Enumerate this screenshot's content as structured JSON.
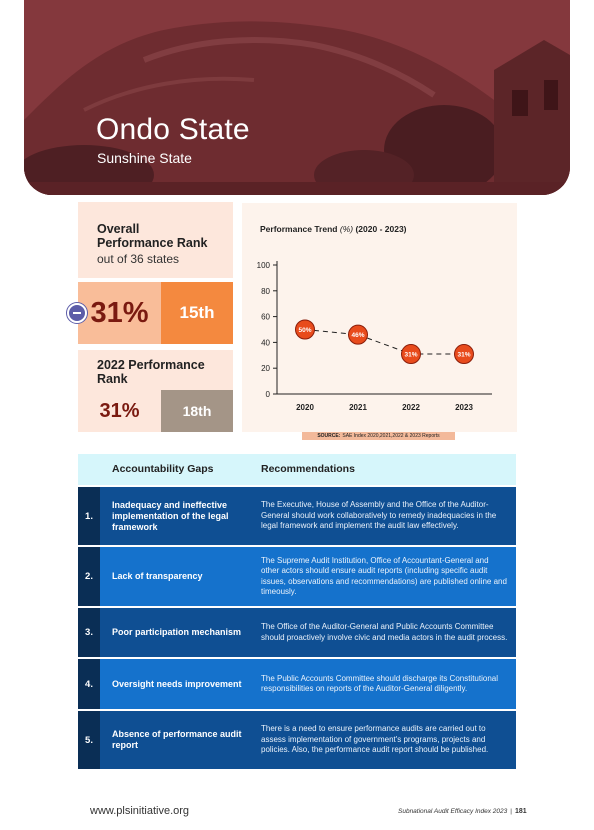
{
  "hero": {
    "title": "Ondo State",
    "subtitle": "Sunshine State"
  },
  "overall_rank": {
    "heading": "Overall Performance Rank",
    "subheading": "out of 36 states",
    "score": "31%",
    "rank": "15th",
    "change_icon": "minus-icon"
  },
  "rank_2022": {
    "heading": "2022 Performance Rank",
    "score": "31%",
    "rank": "18th"
  },
  "chart": {
    "title": "Performance Trend",
    "title_unit": "(%)",
    "title_range": "(2020 - 2023)",
    "source_label": "SOURCE:",
    "source_text": "SAE Index 2020,2021,2022 & 2023 Reports"
  },
  "chart_data": {
    "type": "line",
    "title": "Performance Trend (%) (2020 - 2023)",
    "x": [
      "2020",
      "2021",
      "2022",
      "2023"
    ],
    "series": [
      {
        "values": [
          50,
          46,
          31,
          31
        ],
        "labels": [
          "50%",
          "46%",
          "31%",
          "31%"
        ]
      }
    ],
    "ylim": [
      0,
      100
    ],
    "yticks": [
      0,
      20,
      40,
      60,
      80,
      100
    ],
    "grid": false,
    "marker_color": "#e84b1c",
    "line_style": "dashed"
  },
  "table": {
    "col_gap": "Accountability Gaps",
    "col_rec": "Recommendations",
    "rows": [
      {
        "num": "1.",
        "gap": "Inadequacy and ineffective implementation of the legal framework",
        "rec": "The Executive, House of Assembly and the Office of the Auditor-General should work collaboratively to remedy inadequacies in the legal framework and implement the audit law effectively."
      },
      {
        "num": "2.",
        "gap": "Lack of transparency",
        "rec": "The Supreme Audit Institution, Office of Accountant-General and other actors should ensure audit reports (including specific audit issues, observations and recommendations) are published online and timeously."
      },
      {
        "num": "3.",
        "gap": "Poor participation mechanism",
        "rec": "The Office of the Auditor-General and Public Accounts Committee should proactively involve civic and media actors in the audit process."
      },
      {
        "num": "4.",
        "gap": "Oversight needs improvement",
        "rec": "The Public Accounts Committee should discharge its Constitutional responsibilities on reports of the Auditor-General diligently."
      },
      {
        "num": "5.",
        "gap": "Absence of performance audit report",
        "rec": "There is a need to ensure performance audits are carried out to assess implementation of  government's programs, projects and policies. Also, the performance audit report should be published."
      }
    ]
  },
  "footer": {
    "website": "www.plsinitiative.org",
    "publication": "Subnational Audit Efficacy Index 2023",
    "separator": "|",
    "page": "181"
  },
  "colors": {
    "hero_overlay": "#7a2f34",
    "table_dark": "#0f4f93",
    "table_light": "#1572cc",
    "table_header": "#d6f6fb",
    "accent_orange": "#f4893f"
  }
}
